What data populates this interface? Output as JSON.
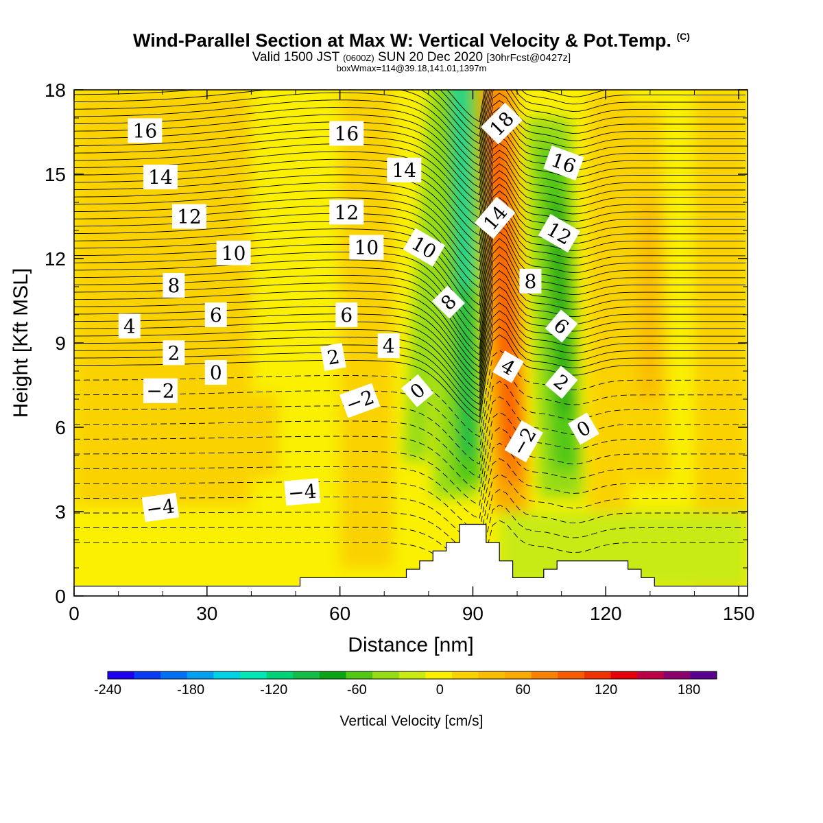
{
  "header": {
    "title": "Wind-Parallel Section at Max W: Vertical Velocity & Pot.Temp.",
    "copyright": "(C)",
    "subtitle_main": "Valid 1500 JST",
    "subtitle_utc": "(0600Z)",
    "subtitle_date": "SUN 20 Dec 2020",
    "subtitle_fcst": "[30hrFcst@0427z]",
    "box_info": "boxWmax=114@39.18,141.01,1397m"
  },
  "chart_data": {
    "type": "heatmap",
    "xlabel": "Distance [nm]",
    "ylabel": "Height [Kft MSL]",
    "xlim": [
      0,
      152
    ],
    "ylim": [
      0,
      18
    ],
    "x_ticks": [
      0,
      30,
      60,
      90,
      120,
      150
    ],
    "y_ticks": [
      0,
      3,
      6,
      9,
      12,
      15,
      18
    ],
    "colorbar": {
      "title": "Vertical Velocity [cm/s]",
      "range": [
        -240,
        200
      ],
      "step": 20,
      "tick_values": [
        -240,
        -180,
        -120,
        -60,
        0,
        60,
        120,
        180
      ],
      "tick_labels": [
        "-240",
        "-180",
        "-120",
        "-60",
        "0",
        "60",
        "120",
        "180"
      ],
      "colors": [
        "#1e00f0",
        "#0a3cf5",
        "#0070f5",
        "#00a0f0",
        "#00d2e6",
        "#00e6b4",
        "#00d278",
        "#14be46",
        "#0aa514",
        "#50c814",
        "#96dc14",
        "#c8eb14",
        "#faf000",
        "#fad200",
        "#fabe00",
        "#faaa00",
        "#fa8200",
        "#fa5a00",
        "#f03200",
        "#e6000a",
        "#be0046",
        "#8c006e",
        "#5a0091"
      ]
    },
    "velocity_features": [
      {
        "kind": "downdraft",
        "x_center": 89,
        "peak_cm_s": -90
      },
      {
        "kind": "downdraft",
        "x_center": 77,
        "peak_cm_s": -40
      },
      {
        "kind": "downdraft",
        "x_center": 111,
        "peak_cm_s": -70
      },
      {
        "kind": "updraft",
        "x_center": 99,
        "peak_cm_s": 114
      },
      {
        "kind": "updraft",
        "x_center": 130,
        "peak_cm_s": 40
      }
    ],
    "terrain_kft": [
      {
        "x": 0,
        "h": 0.35
      },
      {
        "x": 51,
        "h": 0.35
      },
      {
        "x": 51,
        "h": 0.65
      },
      {
        "x": 75,
        "h": 0.65
      },
      {
        "x": 75,
        "h": 0.95
      },
      {
        "x": 78,
        "h": 0.95
      },
      {
        "x": 78,
        "h": 1.25
      },
      {
        "x": 81,
        "h": 1.25
      },
      {
        "x": 81,
        "h": 1.6
      },
      {
        "x": 84,
        "h": 1.6
      },
      {
        "x": 84,
        "h": 1.9
      },
      {
        "x": 87,
        "h": 1.9
      },
      {
        "x": 87,
        "h": 2.55
      },
      {
        "x": 93,
        "h": 2.55
      },
      {
        "x": 93,
        "h": 1.9
      },
      {
        "x": 96,
        "h": 1.9
      },
      {
        "x": 96,
        "h": 1.25
      },
      {
        "x": 99,
        "h": 1.25
      },
      {
        "x": 99,
        "h": 0.65
      },
      {
        "x": 106,
        "h": 0.65
      },
      {
        "x": 106,
        "h": 0.95
      },
      {
        "x": 109,
        "h": 0.95
      },
      {
        "x": 109,
        "h": 1.25
      },
      {
        "x": 125,
        "h": 1.25
      },
      {
        "x": 125,
        "h": 0.95
      },
      {
        "x": 128,
        "h": 0.95
      },
      {
        "x": 128,
        "h": 0.65
      },
      {
        "x": 131,
        "h": 0.65
      },
      {
        "x": 131,
        "h": 0.35
      },
      {
        "x": 152,
        "h": 0.35
      }
    ],
    "contour_labels": [
      {
        "text": "16",
        "x": 16,
        "y": 16.55,
        "rot": 0
      },
      {
        "text": "14",
        "x": 19.5,
        "y": 14.9,
        "rot": 0
      },
      {
        "text": "12",
        "x": 26,
        "y": 13.5,
        "rot": 0
      },
      {
        "text": "10",
        "x": 36,
        "y": 12.2,
        "rot": 0
      },
      {
        "text": "8",
        "x": 22.5,
        "y": 11.05,
        "rot": 0
      },
      {
        "text": "6",
        "x": 32,
        "y": 10.0,
        "rot": 0
      },
      {
        "text": "4",
        "x": 12.5,
        "y": 9.6,
        "rot": 0
      },
      {
        "text": "2",
        "x": 22.5,
        "y": 8.65,
        "rot": 0
      },
      {
        "text": "0",
        "x": 32,
        "y": 7.95,
        "rot": 0
      },
      {
        "text": "−2",
        "x": 19.5,
        "y": 7.3,
        "rot": 0
      },
      {
        "text": "−4",
        "x": 19.5,
        "y": 3.15,
        "rot": -8
      },
      {
        "text": "16",
        "x": 61.5,
        "y": 16.45,
        "rot": 0
      },
      {
        "text": "14",
        "x": 74.5,
        "y": 15.15,
        "rot": 0
      },
      {
        "text": "12",
        "x": 61.5,
        "y": 13.65,
        "rot": 0
      },
      {
        "text": "10",
        "x": 66,
        "y": 12.4,
        "rot": 0
      },
      {
        "text": "6",
        "x": 61.5,
        "y": 10.0,
        "rot": 0
      },
      {
        "text": "2",
        "x": 58.5,
        "y": 8.5,
        "rot": -10
      },
      {
        "text": "4",
        "x": 71,
        "y": 8.9,
        "rot": 0
      },
      {
        "text": "−2",
        "x": 64.5,
        "y": 6.95,
        "rot": -20
      },
      {
        "text": "−4",
        "x": 51.5,
        "y": 3.7,
        "rot": -5
      },
      {
        "text": "10",
        "x": 79,
        "y": 12.4,
        "rot": 30
      },
      {
        "text": "8",
        "x": 84.5,
        "y": 10.45,
        "rot": -45
      },
      {
        "text": "0",
        "x": 77.5,
        "y": 7.3,
        "rot": -40
      },
      {
        "text": "18",
        "x": 96.5,
        "y": 16.8,
        "rot": -45
      },
      {
        "text": "14",
        "x": 95,
        "y": 13.45,
        "rot": -50
      },
      {
        "text": "8",
        "x": 103,
        "y": 11.2,
        "rot": 0
      },
      {
        "text": "4",
        "x": 98,
        "y": 8.15,
        "rot": 30
      },
      {
        "text": "−2",
        "x": 101.5,
        "y": 5.5,
        "rot": -60
      },
      {
        "text": "16",
        "x": 110.5,
        "y": 15.4,
        "rot": 20
      },
      {
        "text": "12",
        "x": 109.5,
        "y": 12.9,
        "rot": 30
      },
      {
        "text": "6",
        "x": 110,
        "y": 9.6,
        "rot": 40
      },
      {
        "text": "2",
        "x": 110,
        "y": 7.6,
        "rot": 40
      },
      {
        "text": "0",
        "x": 115,
        "y": 5.95,
        "rot": -30
      }
    ]
  }
}
